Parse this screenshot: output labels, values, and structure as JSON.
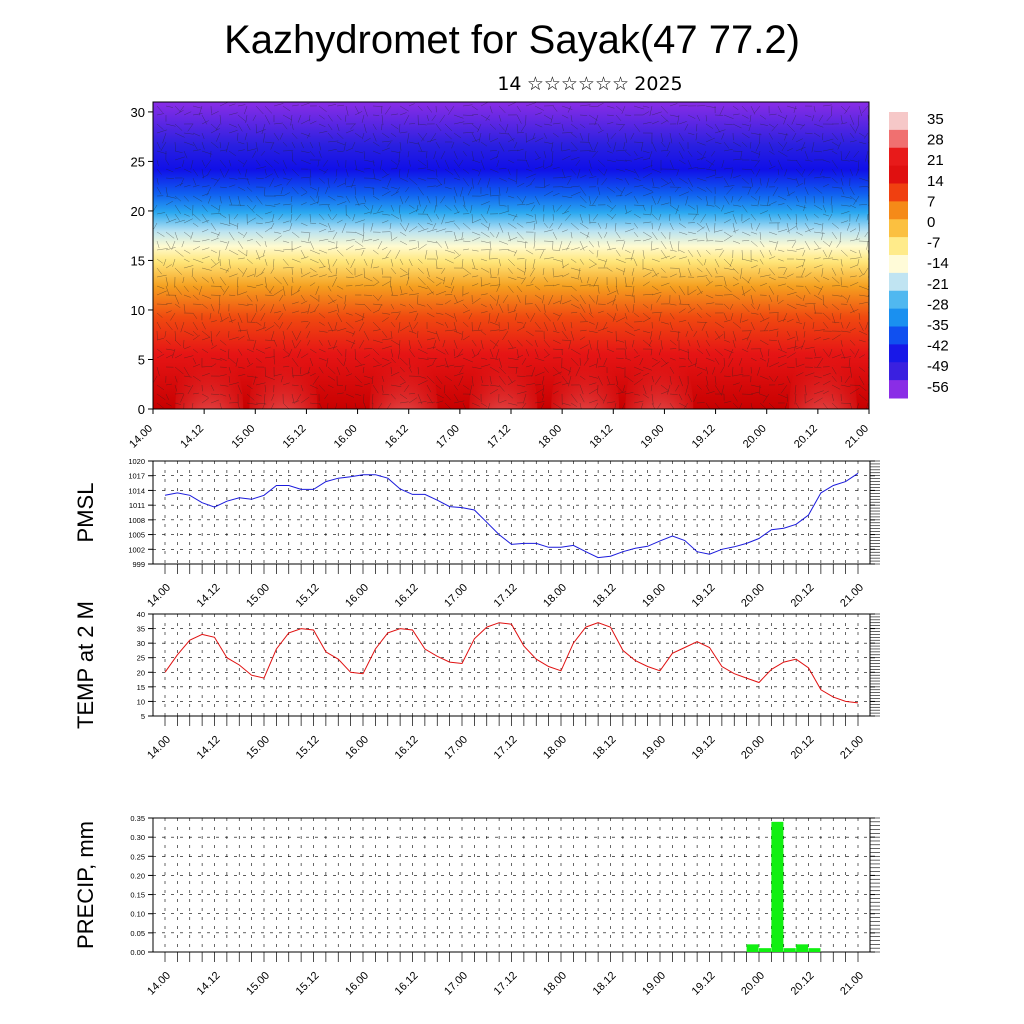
{
  "title": "Kazhydromet for Sayak(47 77.2)",
  "subtitle": {
    "day": "14",
    "month_glyphs": "☆☆☆☆☆☆",
    "year": "2025"
  },
  "time_labels": [
    "14.00",
    "14.12",
    "15.00",
    "15.12",
    "16.00",
    "16.12",
    "17.00",
    "17.12",
    "18.00",
    "18.12",
    "19.00",
    "19.12",
    "20.00",
    "20.12",
    "21.00"
  ],
  "chart_data": [
    {
      "type": "heatmap",
      "title": "",
      "x": [
        "14.00",
        "14.12",
        "15.00",
        "15.12",
        "16.00",
        "16.12",
        "17.00",
        "17.12",
        "18.00",
        "18.12",
        "19.00",
        "19.12",
        "20.00",
        "20.12",
        "21.00"
      ],
      "y_ticks": [
        0,
        5,
        10,
        15,
        20,
        25,
        30
      ],
      "ylim": [
        0,
        31
      ],
      "colorbar_labels": [
        "35",
        "28",
        "21",
        "14",
        "7",
        "0",
        "-7",
        "-14",
        "-21",
        "-28",
        "-35",
        "-42",
        "-49",
        "-56"
      ],
      "colors": {
        "warm_high": "#f6b8b8",
        "red": "#e11010",
        "orange": "#f08010",
        "yellow": "#fff080",
        "light_blue": "#a0d8f0",
        "cyan": "#1ea0f0",
        "blue": "#1010f0",
        "purple": "#8020e0"
      }
    },
    {
      "type": "line",
      "ylabel": "PMSL",
      "x": [
        "14.00",
        "14.03",
        "14.06",
        "14.09",
        "14.12",
        "14.15",
        "14.18",
        "14.21",
        "15.00",
        "15.03",
        "15.06",
        "15.09",
        "15.12",
        "15.15",
        "15.18",
        "15.21",
        "16.00",
        "16.03",
        "16.06",
        "16.09",
        "16.12",
        "16.15",
        "16.18",
        "16.21",
        "17.00",
        "17.03",
        "17.06",
        "17.09",
        "17.12",
        "17.15",
        "17.18",
        "17.21",
        "18.00",
        "18.03",
        "18.06",
        "18.09",
        "18.12",
        "18.15",
        "18.18",
        "18.21",
        "19.00",
        "19.03",
        "19.06",
        "19.09",
        "19.12",
        "19.15",
        "19.18",
        "19.21",
        "20.00",
        "20.03",
        "20.06",
        "20.09",
        "20.12",
        "20.15",
        "20.18",
        "20.21",
        "21.00"
      ],
      "values": [
        1013,
        1013.5,
        1013,
        1011.5,
        1010.6,
        1011.8,
        1012.5,
        1012.2,
        1013,
        1015,
        1015,
        1014.2,
        1014.2,
        1015.8,
        1016.5,
        1016.8,
        1017.2,
        1017.2,
        1016.5,
        1014.3,
        1013.2,
        1013.2,
        1012,
        1010.7,
        1010.5,
        1010,
        1007.5,
        1005,
        1003,
        1003.2,
        1003.2,
        1002.4,
        1002.4,
        1002.8,
        1001.5,
        1000.3,
        1000.6,
        1001.5,
        1002.2,
        1002.6,
        1003.7,
        1004.7,
        1003.8,
        1001.5,
        1001,
        1002,
        1002.5,
        1003.2,
        1004.2,
        1006,
        1006.3,
        1007.1,
        1009,
        1013.5,
        1015,
        1015.8,
        1017.5
      ],
      "ylim": [
        999,
        1020
      ],
      "y_ticks": [
        999,
        1002,
        1005,
        1008,
        1011,
        1014,
        1017,
        1020
      ],
      "color": "#1a1adc"
    },
    {
      "type": "line",
      "ylabel": "TEMP at 2 M",
      "x": [
        "14.00",
        "14.03",
        "14.06",
        "14.09",
        "14.12",
        "14.15",
        "14.18",
        "14.21",
        "15.00",
        "15.03",
        "15.06",
        "15.09",
        "15.12",
        "15.15",
        "15.18",
        "15.21",
        "16.00",
        "16.03",
        "16.06",
        "16.09",
        "16.12",
        "16.15",
        "16.18",
        "16.21",
        "17.00",
        "17.03",
        "17.06",
        "17.09",
        "17.12",
        "17.15",
        "17.18",
        "17.21",
        "18.00",
        "18.03",
        "18.06",
        "18.09",
        "18.12",
        "18.15",
        "18.18",
        "18.21",
        "19.00",
        "19.03",
        "19.06",
        "19.09",
        "19.12",
        "19.15",
        "19.18",
        "19.21",
        "20.00",
        "20.03",
        "20.06",
        "20.09",
        "20.12",
        "20.15",
        "20.18",
        "20.21",
        "21.00"
      ],
      "values": [
        20,
        26,
        31,
        33,
        32,
        25,
        22.5,
        19,
        18,
        28,
        33.5,
        35,
        34.5,
        27,
        24.5,
        20,
        19.5,
        28,
        33.5,
        35,
        34.5,
        28,
        25.5,
        23.5,
        23,
        31.5,
        35.5,
        37,
        36.5,
        29,
        24.5,
        22,
        20.5,
        30,
        35.5,
        37,
        35.5,
        27.5,
        24,
        22,
        20.5,
        26.5,
        28.5,
        30.5,
        28.5,
        22,
        19.5,
        18,
        16.5,
        21,
        23.5,
        24.5,
        21.5,
        14,
        11.5,
        10,
        9.5
      ],
      "ylim": [
        5,
        40
      ],
      "y_ticks": [
        5,
        10,
        15,
        20,
        25,
        30,
        35,
        40
      ],
      "color": "#e01010"
    },
    {
      "type": "bar",
      "ylabel": "PRECIP, mm",
      "x": [
        "19.21",
        "20.00",
        "20.03",
        "20.06",
        "20.09"
      ],
      "values": [
        0.02,
        0.01,
        0.34,
        0.01,
        0.02
      ],
      "extra": {
        "x": "20.12",
        "value": 0.01
      },
      "ylim": [
        0,
        0.35
      ],
      "y_ticks": [
        "0.00",
        "0.05",
        "0.10",
        "0.15",
        "0.20",
        "0.25",
        "0.30",
        "0.35"
      ],
      "color": "#10f010"
    }
  ]
}
